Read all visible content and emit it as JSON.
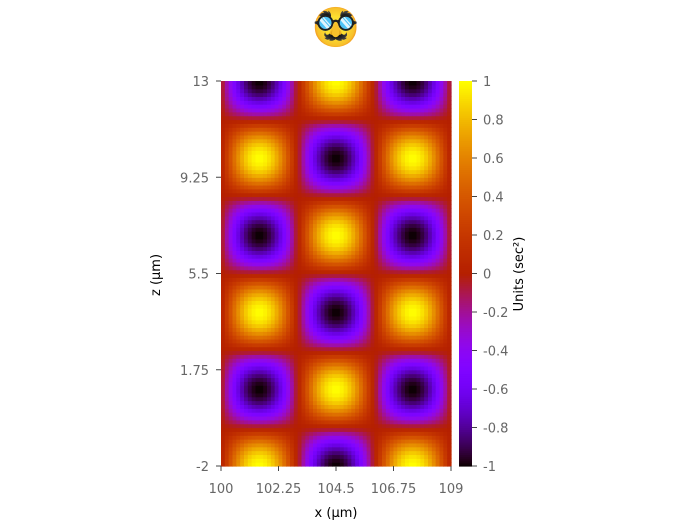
{
  "header": {
    "emoji": "🥸",
    "emoji_name": "disguised-face-icon"
  },
  "chart_data": {
    "type": "heatmap",
    "title": "",
    "xlabel": "x (µm)",
    "ylabel": "z (µm)",
    "colorbar_label": "Units (sec²)",
    "colormap": "gnuplot",
    "x_range": [
      100,
      109
    ],
    "y_range": [
      -2,
      13
    ],
    "z_range": [
      -1,
      1
    ],
    "x_ticks": [
      100,
      102.25,
      104.5,
      106.75,
      109
    ],
    "x_tick_labels": [
      "100",
      "102.25",
      "104.5",
      "106.75",
      "109"
    ],
    "y_ticks": [
      -2,
      1.75,
      5.5,
      9.25,
      13
    ],
    "y_tick_labels": [
      "-2",
      "1.75",
      "5.5",
      "9.25",
      "13"
    ],
    "colorbar_ticks": [
      1,
      0.8,
      0.6,
      0.4,
      0.2,
      0,
      -0.2,
      -0.4,
      -0.6,
      -0.8,
      -1
    ],
    "colorbar_tick_labels": [
      "1",
      "0.8",
      "0.6",
      "0.4",
      "0.2",
      "0",
      "-0.2",
      "-0.4",
      "-0.6",
      "-0.8",
      "-1"
    ],
    "function": "z = cos(pi*(x-101.5)/3) * cos(pi*(y+2)/3)",
    "grid_resolution": [
      60,
      100
    ],
    "grid": false
  }
}
